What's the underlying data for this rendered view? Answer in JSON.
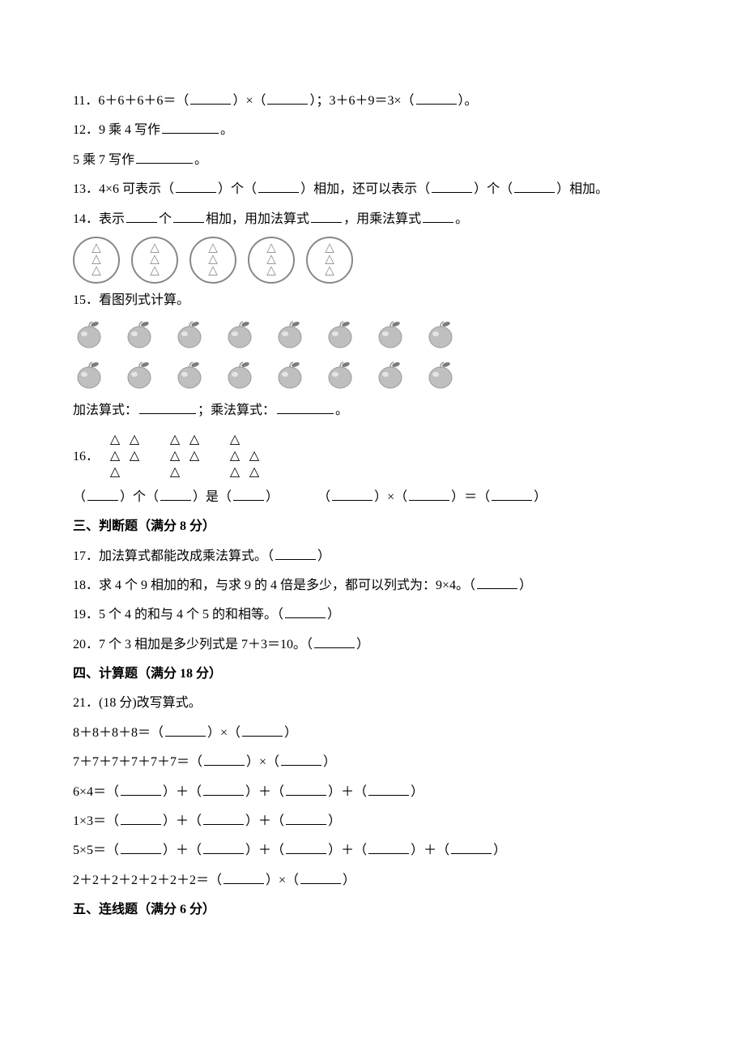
{
  "q11": {
    "num": "11．",
    "text_a": "6＋6＋6＋6＝（",
    "text_b": "）×（",
    "text_c": "）；3＋6＋9＝3×（",
    "text_d": "）。"
  },
  "q12": {
    "num": "12．",
    "line1_a": "9 乘 4 写作",
    "line1_b": "。",
    "line2_a": "5 乘 7 写作",
    "line2_b": "。"
  },
  "q13": {
    "num": "13．",
    "a": "4×6 可表示（",
    "b": "）个（",
    "c": "）相加，还可以表示（",
    "d": "）个（",
    "e": "）相加。"
  },
  "q14": {
    "num": "14．",
    "a": "表示",
    "b": "个",
    "c": "相加，用加法算式",
    "d": "，用乘法算式",
    "e": "。",
    "circle_count": 5
  },
  "q15": {
    "num": "15．",
    "title": "看图列式计算。",
    "apple_rows": 2,
    "apple_cols": 8,
    "a": "加法算式：",
    "b": "；乘法算式：",
    "c": "。"
  },
  "q16": {
    "num": "16．",
    "groups": [
      [
        [
          1,
          1
        ],
        [
          1,
          1
        ],
        [
          1,
          0
        ]
      ],
      [
        [
          1,
          1
        ],
        [
          1,
          1
        ],
        [
          1,
          0
        ]
      ],
      [
        [
          1,
          0
        ],
        [
          1,
          1
        ],
        [
          1,
          1
        ]
      ]
    ],
    "text_a": "（",
    "text_b": "）个（",
    "text_c": "）是（",
    "text_d": "）",
    "text_e": "（",
    "text_f": "）×（",
    "text_g": "）＝（",
    "text_h": "）"
  },
  "sec3_title": "三、判断题（满分 8 分）",
  "q17": {
    "num": "17．",
    "t": "加法算式都能改成乘法算式。（",
    "end": "）"
  },
  "q18": {
    "num": "18．",
    "t": "求 4 个 9 相加的和，与求 9 的 4 倍是多少，都可以列式为：9×4。（",
    "end": "）"
  },
  "q19": {
    "num": "19．",
    "t": "5 个 4 的和与 4 个 5 的和相等。（",
    "end": "）"
  },
  "q20": {
    "num": "20．",
    "t": "7 个 3 相加是多少列式是 7＋3＝10。（",
    "end": "）"
  },
  "sec4_title": "四、计算题（满分 18 分）",
  "q21": {
    "num": "21．",
    "title": "(18 分)改写算式。",
    "lines": [
      {
        "lhs": "8＋8＋8＋8＝（",
        "mids": [
          "）×（"
        ],
        "end": "）"
      },
      {
        "lhs": "7＋7＋7＋7＋7＋7＝（",
        "mids": [
          "）×（"
        ],
        "end": "）"
      },
      {
        "lhs": "6×4＝（",
        "mids": [
          "）＋（",
          "）＋（",
          "）＋（"
        ],
        "end": "）"
      },
      {
        "lhs": "1×3＝（",
        "mids": [
          "）＋（",
          "）＋（"
        ],
        "end": "）"
      },
      {
        "lhs": "5×5＝（",
        "mids": [
          "）＋（",
          "）＋（",
          "）＋（",
          "）＋（"
        ],
        "end": "）"
      },
      {
        "lhs": "2＋2＋2＋2＋2＋2＋2＝（",
        "mids": [
          "）×（"
        ],
        "end": "）"
      }
    ]
  },
  "sec5_title": "五、连线题（满分 6 分）",
  "colors": {
    "text": "#000000",
    "icon_stroke": "#888888",
    "apple_fill": "#bfbfbf",
    "apple_outline": "#9a9a9a",
    "apple_leaf": "#7b7b7b",
    "background": "#ffffff"
  }
}
